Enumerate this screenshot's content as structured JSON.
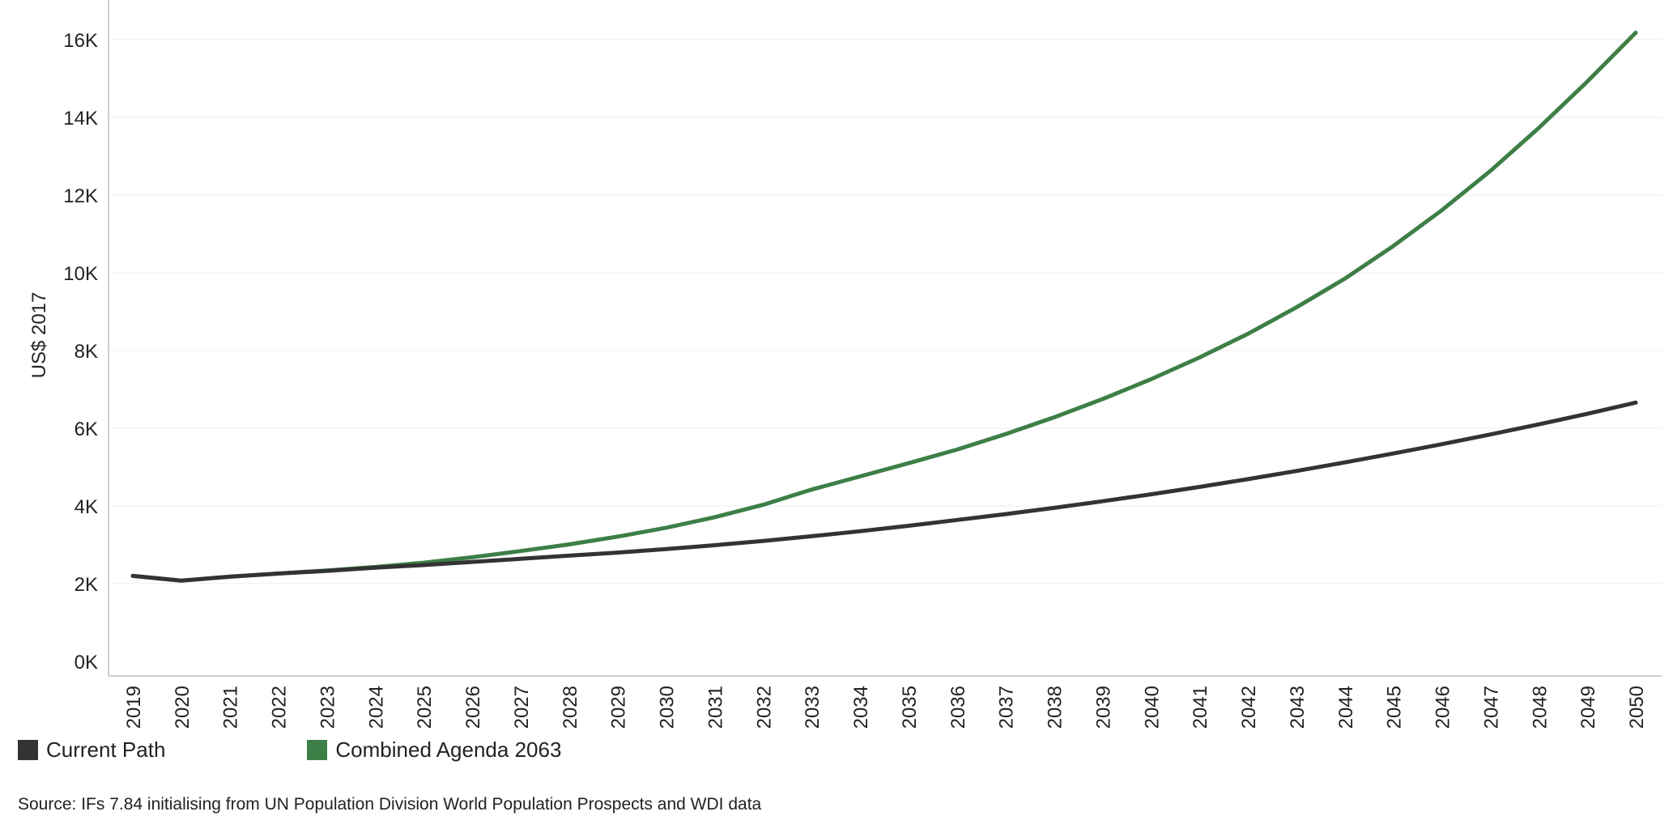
{
  "chart_data": {
    "type": "line",
    "ylabel": "US$ 2017",
    "xlabel": "",
    "ylim": [
      0,
      17000
    ],
    "yticks": [
      0,
      2000,
      4000,
      6000,
      8000,
      10000,
      12000,
      14000,
      16000
    ],
    "ytick_labels": [
      "0K",
      "2K",
      "4K",
      "6K",
      "8K",
      "10K",
      "12K",
      "14K",
      "16K"
    ],
    "grid": "horizontal",
    "legend_position": "bottom-left",
    "x": [
      2019,
      2020,
      2021,
      2022,
      2023,
      2024,
      2025,
      2026,
      2027,
      2028,
      2029,
      2030,
      2031,
      2032,
      2033,
      2034,
      2035,
      2036,
      2037,
      2038,
      2039,
      2040,
      2041,
      2042,
      2043,
      2044,
      2045,
      2046,
      2047,
      2048,
      2049,
      2050
    ],
    "series": [
      {
        "name": "Current Path",
        "color": "#333333",
        "values": [
          2200,
          2080,
          2180,
          2260,
          2330,
          2410,
          2480,
          2560,
          2640,
          2720,
          2800,
          2890,
          2990,
          3100,
          3220,
          3350,
          3490,
          3640,
          3790,
          3950,
          4120,
          4300,
          4490,
          4690,
          4900,
          5120,
          5350,
          5590,
          5840,
          6100,
          6370,
          6660
        ]
      },
      {
        "name": "Combined Agenda 2063",
        "color": "#3d7f46",
        "values": [
          2200,
          2080,
          2180,
          2260,
          2340,
          2430,
          2540,
          2680,
          2840,
          3010,
          3210,
          3440,
          3710,
          4030,
          4420,
          4760,
          5100,
          5450,
          5850,
          6280,
          6750,
          7260,
          7820,
          8430,
          9110,
          9850,
          10690,
          11610,
          12620,
          13730,
          14920,
          16180
        ]
      }
    ]
  },
  "legend": {
    "items": [
      {
        "label": "Current Path",
        "color": "#333333"
      },
      {
        "label": "Combined Agenda 2063",
        "color": "#3d7f46"
      }
    ]
  },
  "source": "Source: IFs 7.84 initialising from UN Population Division World Population Prospects and WDI data"
}
